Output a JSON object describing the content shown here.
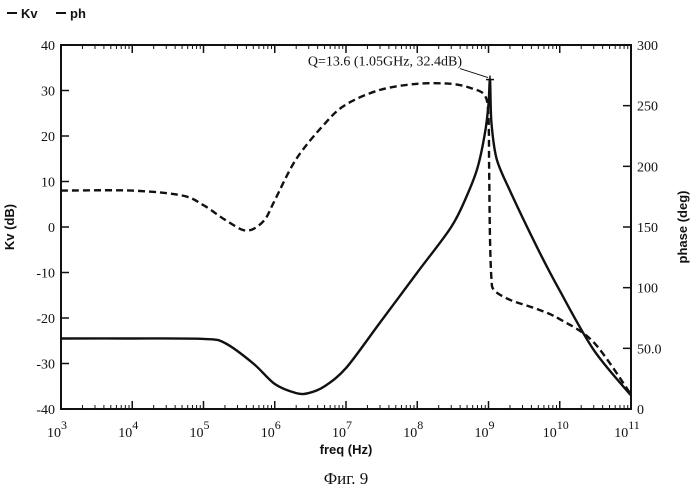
{
  "chart_data": {
    "type": "line",
    "title": "",
    "caption": "Фиг. 9",
    "xlabel": "freq (Hz)",
    "ylabel_left": "Kv (dB)",
    "ylabel_right": "phase (deg)",
    "x_scale": "log",
    "xlim": [
      1000,
      100000000000
    ],
    "ylim_left": [
      -40,
      40
    ],
    "ylim_right": [
      0,
      300
    ],
    "x_ticks": [
      {
        "base": "10",
        "exp": "3",
        "value": 1000
      },
      {
        "base": "10",
        "exp": "4",
        "value": 10000
      },
      {
        "base": "10",
        "exp": "5",
        "value": 100000
      },
      {
        "base": "10",
        "exp": "6",
        "value": 1000000
      },
      {
        "base": "10",
        "exp": "7",
        "value": 10000000
      },
      {
        "base": "10",
        "exp": "8",
        "value": 100000000
      },
      {
        "base": "10",
        "exp": "9",
        "value": 1000000000
      },
      {
        "base": "10",
        "exp": "10",
        "value": 10000000000
      },
      {
        "base": "10",
        "exp": "11",
        "value": 100000000000
      }
    ],
    "y_left_ticks": [
      "40",
      "30",
      "20",
      "10",
      "0",
      "-10",
      "-20",
      "-30",
      "-40"
    ],
    "y_left_tick_values": [
      40,
      30,
      20,
      10,
      0,
      -10,
      -20,
      -30,
      -40
    ],
    "y_right_ticks": [
      "300",
      "250",
      "200",
      "150",
      "100",
      "50.0",
      "0"
    ],
    "y_right_tick_values": [
      300,
      250,
      200,
      150,
      100,
      50,
      0
    ],
    "grid": false,
    "legend_position": "top-left",
    "series": [
      {
        "name": "Kv",
        "axis": "left",
        "style": "solid",
        "color": "#111111",
        "x": [
          1000,
          10000,
          100000,
          200000,
          500000,
          1000000,
          2000000,
          3000000,
          5000000,
          10000000,
          30000000,
          100000000,
          300000000,
          500000000,
          700000000,
          900000000,
          1000000000,
          1050000000,
          1100000000,
          1300000000,
          2000000000,
          5000000000,
          10000000000,
          30000000000,
          100000000000
        ],
        "y": [
          -24.5,
          -24.5,
          -24.6,
          -25.5,
          -30,
          -34.5,
          -36.5,
          -36.5,
          -35,
          -31,
          -21,
          -10,
          0,
          7,
          13,
          21,
          27,
          32.4,
          23,
          15,
          8,
          -5,
          -14,
          -27,
          -37
        ]
      },
      {
        "name": "ph",
        "axis": "right",
        "style": "dashed",
        "color": "#111111",
        "x": [
          1000,
          10000,
          50000,
          100000,
          200000,
          400000,
          700000,
          1000000,
          2000000,
          5000000,
          10000000,
          30000000,
          100000000,
          300000000,
          600000000,
          900000000,
          1000000000,
          1020000000,
          1050000000,
          1100000000,
          1200000000,
          2000000000,
          5000000000,
          10000000000,
          30000000000,
          100000000000
        ],
        "y": [
          180,
          180,
          176,
          168,
          156,
          147,
          155,
          172,
          206,
          235,
          251,
          263,
          268,
          268,
          264,
          258,
          240,
          200,
          140,
          108,
          98,
          90,
          82,
          74,
          55,
          12
        ]
      }
    ],
    "annotations": [
      {
        "text": "Q=13.6 (1.05GHz, 32.4dB)",
        "x": 1050000000,
        "y": 32.4,
        "axis": "left"
      }
    ]
  }
}
